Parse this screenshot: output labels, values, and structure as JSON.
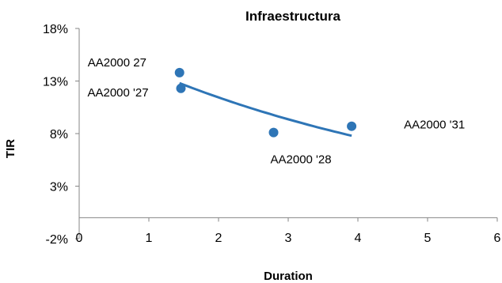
{
  "chart_data": {
    "type": "scatter",
    "title": "Infraestructura",
    "xlabel": "Duration",
    "ylabel": "TIR",
    "xlim": [
      0,
      6
    ],
    "ylim": [
      -0.02,
      0.18
    ],
    "x_ticks": [
      "0",
      "1",
      "2",
      "3",
      "4",
      "5",
      "6"
    ],
    "y_ticks": [
      "-2%",
      "3%",
      "8%",
      "13%",
      "18%"
    ],
    "grid": false,
    "legend": "none",
    "series": [
      {
        "color": "#2e75b6",
        "points": [
          {
            "label": "AA2000 27",
            "x": 1.44,
            "y": 0.138
          },
          {
            "label": "AA2000 '27",
            "x": 1.46,
            "y": 0.123
          },
          {
            "label": "AA2000 '28",
            "x": 2.79,
            "y": 0.081
          },
          {
            "label": "AA2000 '31",
            "x": 3.91,
            "y": 0.087
          }
        ]
      }
    ],
    "trendline": {
      "type": "exponential",
      "color": "#2e75b6",
      "x_range": [
        1.44,
        3.91
      ],
      "points": [
        {
          "x": 1.44,
          "y": 0.128
        },
        {
          "x": 2.0,
          "y": 0.112
        },
        {
          "x": 3.0,
          "y": 0.092
        },
        {
          "x": 3.91,
          "y": 0.078
        }
      ]
    }
  }
}
